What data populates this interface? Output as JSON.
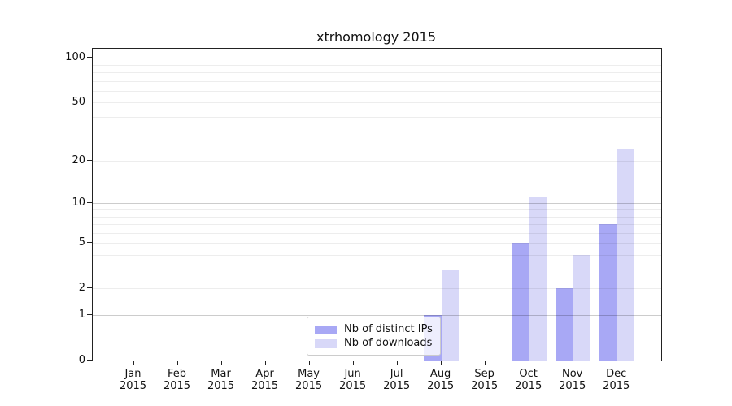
{
  "chart_data": {
    "type": "bar",
    "title": "xtrhomology 2015",
    "categories": [
      "Jan",
      "Feb",
      "Mar",
      "Apr",
      "May",
      "Jun",
      "Jul",
      "Aug",
      "Sep",
      "Oct",
      "Nov",
      "Dec"
    ],
    "x_year_label": "2015",
    "series": [
      {
        "name": "Nb of distinct IPs",
        "color": "#a8a8f5",
        "values": [
          0,
          0,
          0,
          0,
          0,
          0,
          0,
          1,
          0,
          5,
          2,
          7
        ]
      },
      {
        "name": "Nb of downloads",
        "color": "#d8d8f8",
        "values": [
          0,
          0,
          0,
          0,
          0,
          0,
          0,
          3,
          0,
          11,
          4,
          24
        ]
      }
    ],
    "yticks": [
      0,
      1,
      2,
      5,
      10,
      20,
      50,
      100
    ],
    "major_gridlines": [
      1,
      10,
      100
    ],
    "minor_gridlines": [
      2,
      3,
      4,
      5,
      6,
      7,
      8,
      9,
      20,
      30,
      40,
      50,
      60,
      70,
      80,
      90
    ],
    "scale": "log1p",
    "ylim": [
      0,
      115
    ],
    "grid": "on",
    "legend_position": "lower-center"
  }
}
